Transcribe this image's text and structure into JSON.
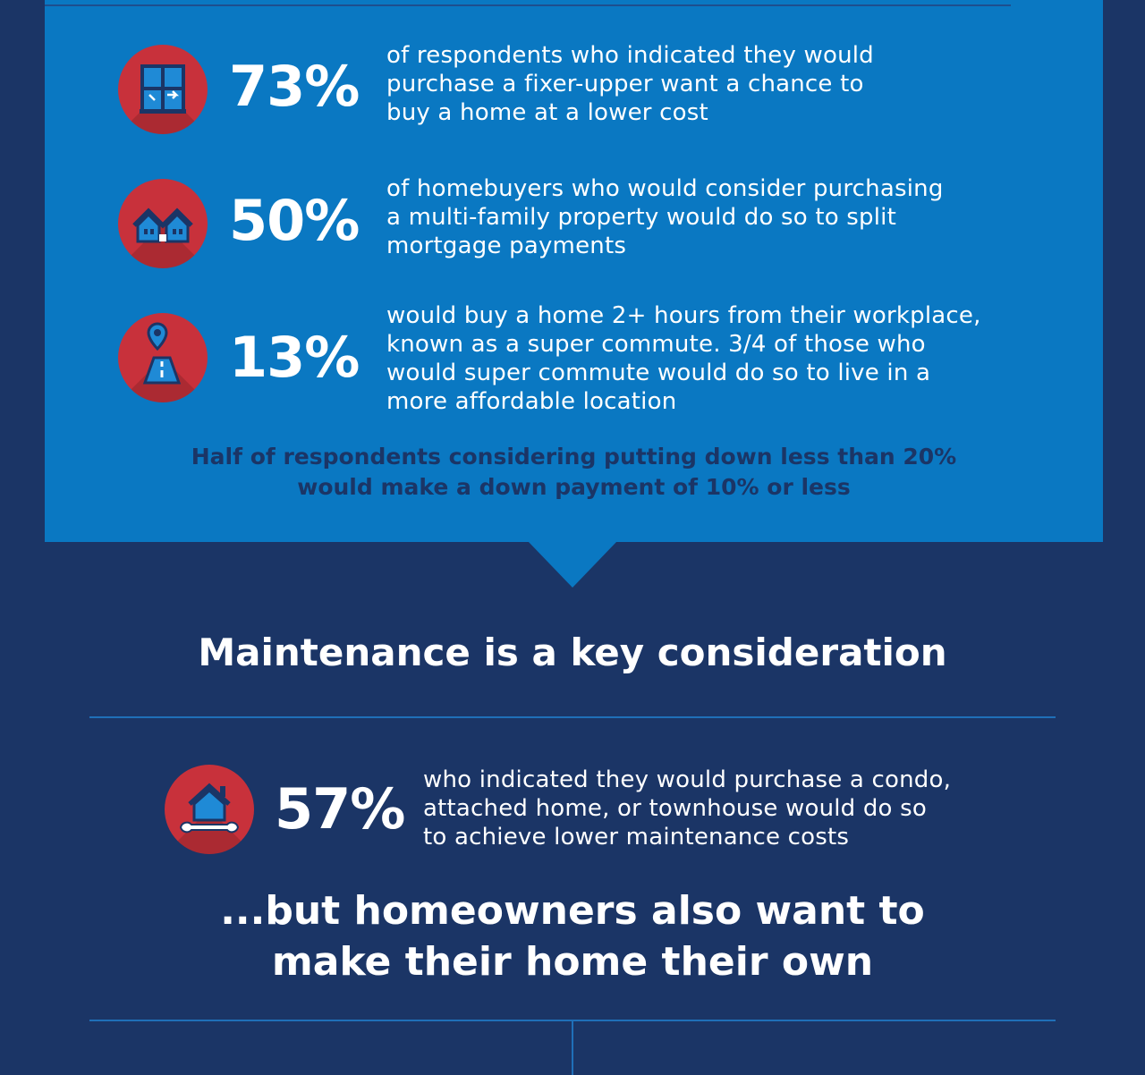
{
  "stats": [
    {
      "value": "73%",
      "icon": "window-icon",
      "lines": [
        "of respondents who indicated they would",
        "purchase a fixer-upper want a chance to",
        "buy a home at a lower cost"
      ]
    },
    {
      "value": "50%",
      "icon": "two-houses-icon",
      "lines": [
        "of homebuyers who would consider purchasing",
        "a multi-family property would do so to split",
        "mortgage payments"
      ]
    },
    {
      "value": "13%",
      "icon": "road-pin-icon",
      "lines": [
        "would buy a home 2+ hours from their workplace,",
        "known as a super commute. 3/4 of those who",
        "would super commute would do so to live in a",
        "more affordable location"
      ]
    }
  ],
  "note": [
    "Half of respondents considering putting down less than 20%",
    "would make a down payment of 10% or less"
  ],
  "maintenance_heading": "Maintenance is a key consideration",
  "maintenance_stat": {
    "value": "57%",
    "icon": "house-wrench-icon",
    "lines": [
      "who indicated they would purchase a condo,",
      "attached home, or townhouse would do so",
      "to achieve lower maintenance costs"
    ]
  },
  "own_heading": [
    "...but homeowners also want to",
    "make their home their own"
  ],
  "colors": {
    "panel": "#0a78c2",
    "background": "#1b3566",
    "accent": "#c8313b",
    "icon_blue": "#1f8ad6"
  }
}
